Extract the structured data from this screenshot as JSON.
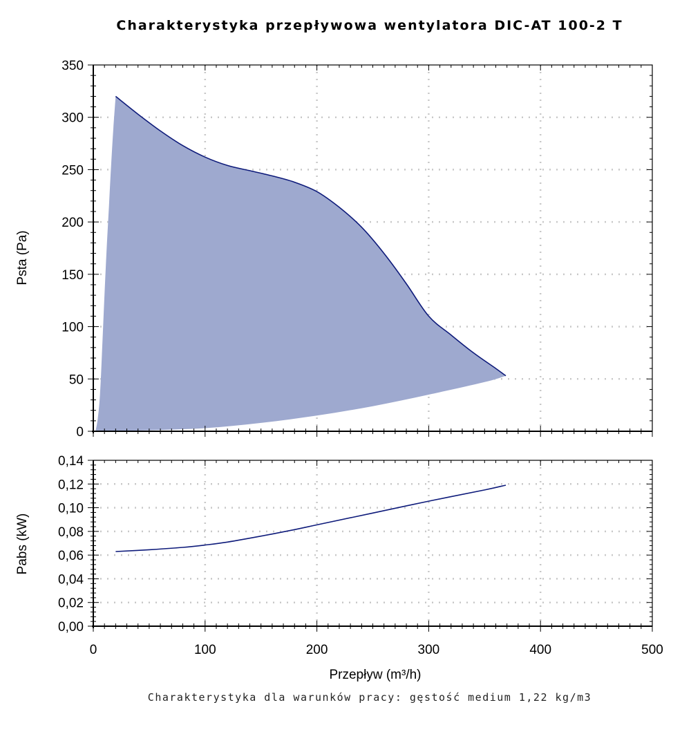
{
  "title": "Charakterystyka przepływowa wentylatora DIC-AT 100-2 T",
  "footnote": "Charakterystyka dla warunków pracy: gęstość medium 1,22 kg/m3",
  "colors": {
    "area_fill": "#9ea9cf",
    "curve": "#0d1a7a",
    "grid": "#c8c8c8",
    "axis": "#000000"
  },
  "chart_data": [
    {
      "type": "area",
      "ylabel": "Psta (Pa)",
      "xlim": [
        0,
        500
      ],
      "ylim": [
        0,
        350
      ],
      "grid": true,
      "x_ticks": [
        0,
        100,
        200,
        300,
        400,
        500
      ],
      "y_ticks": [
        0,
        50,
        100,
        150,
        200,
        250,
        300,
        350
      ],
      "y_tick_labels": [
        "0",
        "50",
        "100",
        "150",
        "200",
        "250",
        "300",
        "350"
      ],
      "upper_boundary": {
        "x": [
          20,
          40,
          60,
          80,
          100,
          120,
          140,
          160,
          180,
          200,
          220,
          240,
          260,
          280,
          300,
          320,
          340,
          360,
          369
        ],
        "y": [
          320,
          303,
          287,
          273,
          262,
          254,
          249,
          244,
          238,
          229,
          214,
          195,
          170,
          141,
          110,
          92,
          75,
          60,
          53
        ]
      },
      "left_boundary": {
        "x": [
          2,
          4,
          6,
          8,
          10,
          12,
          14,
          16,
          18,
          20
        ],
        "y": [
          0,
          12,
          35,
          80,
          130,
          175,
          215,
          255,
          290,
          320
        ]
      },
      "lower_boundary": {
        "x": [
          2,
          50,
          100,
          150,
          200,
          250,
          300,
          350,
          369
        ],
        "y": [
          0,
          1,
          3,
          8,
          15,
          24,
          35,
          47,
          53
        ]
      }
    },
    {
      "type": "line",
      "xlabel": "Przepływ (m³/h)",
      "ylabel": "Pabs (kW)",
      "xlim": [
        0,
        500
      ],
      "ylim": [
        0,
        0.14
      ],
      "grid": true,
      "x_ticks": [
        0,
        100,
        200,
        300,
        400,
        500
      ],
      "x_tick_labels": [
        "0",
        "100",
        "200",
        "300",
        "400",
        "500"
      ],
      "y_ticks": [
        0,
        0.02,
        0.04,
        0.06,
        0.08,
        0.1,
        0.12,
        0.14
      ],
      "y_tick_labels": [
        "0,00",
        "0,02",
        "0,04",
        "0,06",
        "0,08",
        "0,10",
        "0,12",
        "0,14"
      ],
      "series": [
        {
          "x": [
            20,
            50,
            80,
            100,
            120,
            150,
            180,
            200,
            250,
            300,
            350,
            369
          ],
          "y": [
            0.063,
            0.0645,
            0.0665,
            0.0685,
            0.071,
            0.076,
            0.0815,
            0.0855,
            0.0955,
            0.1055,
            0.115,
            0.119
          ]
        }
      ]
    }
  ]
}
